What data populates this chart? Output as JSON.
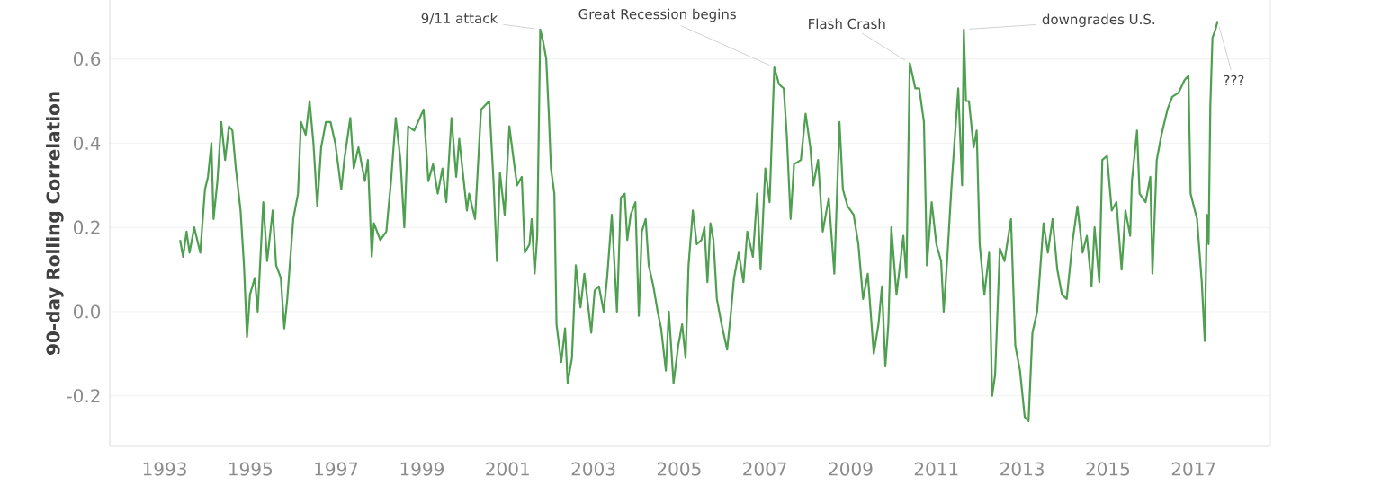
{
  "chart_data": {
    "type": "line",
    "ylabel": "90-day Rolling Correlation",
    "xlim": [
      1991.72,
      2018.79
    ],
    "ylim": [
      -0.32,
      0.74
    ],
    "xticks": [
      1993,
      1995,
      1997,
      1999,
      2001,
      2003,
      2005,
      2007,
      2009,
      2011,
      2013,
      2015,
      2017
    ],
    "yticks": [
      -0.2,
      {
        "value": 0,
        "label": "0.0"
      },
      0.2,
      0.4,
      0.6
    ],
    "grid": "y",
    "line_style": "solid",
    "annotations": [
      {
        "text": "9/11 attack",
        "x": 2001.76,
        "y": 0.67
      },
      {
        "text": "Great Recession begins",
        "x": 2007.22,
        "y": 0.58
      },
      {
        "text": "Flash Crash",
        "x": 2010.38,
        "y": 0.59
      },
      {
        "text": "downgrades U.S.",
        "x": 2011.64,
        "y": 0.67
      },
      {
        "text": "???",
        "x": 2017.56,
        "y": 0.69
      }
    ],
    "series": [
      {
        "color": "#4e9f50",
        "x": [
          1993.36,
          1993.43,
          1993.51,
          1993.58,
          1993.69,
          1993.83,
          1993.94,
          1994.01,
          1994.09,
          1994.14,
          1994.23,
          1994.32,
          1994.41,
          1994.5,
          1994.58,
          1994.66,
          1994.77,
          1994.85,
          1994.92,
          1994.99,
          1995.1,
          1995.17,
          1995.3,
          1995.39,
          1995.52,
          1995.6,
          1995.71,
          1995.79,
          1995.86,
          1996.0,
          1996.11,
          1996.18,
          1996.29,
          1996.38,
          1996.47,
          1996.56,
          1996.65,
          1996.76,
          1996.87,
          1996.98,
          1997.12,
          1997.19,
          1997.33,
          1997.41,
          1997.52,
          1997.67,
          1997.74,
          1997.83,
          1997.88,
          1998.03,
          1998.17,
          1998.28,
          1998.39,
          1998.5,
          1998.59,
          1998.68,
          1998.82,
          1999.04,
          1999.15,
          1999.26,
          1999.37,
          1999.48,
          1999.57,
          1999.69,
          1999.8,
          1999.87,
          2000.05,
          2000.1,
          2000.24,
          2000.38,
          2000.57,
          2000.67,
          2000.75,
          2000.82,
          2000.93,
          2001.04,
          2001.14,
          2001.22,
          2001.33,
          2001.4,
          2001.51,
          2001.56,
          2001.63,
          2001.69,
          2001.76,
          2001.83,
          2001.9,
          2001.96,
          2002.01,
          2002.09,
          2002.14,
          2002.25,
          2002.34,
          2002.4,
          2002.5,
          2002.59,
          2002.7,
          2002.79,
          2002.95,
          2003.03,
          2003.13,
          2003.24,
          2003.32,
          2003.43,
          2003.55,
          2003.64,
          2003.73,
          2003.79,
          2003.87,
          2003.98,
          2004.06,
          2004.13,
          2004.22,
          2004.29,
          2004.4,
          2004.5,
          2004.58,
          2004.69,
          2004.76,
          2004.87,
          2004.98,
          2005.07,
          2005.15,
          2005.22,
          2005.32,
          2005.41,
          2005.52,
          2005.59,
          2005.66,
          2005.73,
          2005.8,
          2005.88,
          2005.99,
          2006.12,
          2006.21,
          2006.28,
          2006.39,
          2006.5,
          2006.59,
          2006.72,
          2006.82,
          2006.9,
          2007.01,
          2007.11,
          2007.22,
          2007.33,
          2007.44,
          2007.51,
          2007.6,
          2007.68,
          2007.84,
          2007.95,
          2008.06,
          2008.13,
          2008.24,
          2008.35,
          2008.49,
          2008.62,
          2008.74,
          2008.82,
          2008.93,
          2009.07,
          2009.18,
          2009.29,
          2009.4,
          2009.54,
          2009.65,
          2009.73,
          2009.81,
          2009.88,
          2009.95,
          2010.07,
          2010.23,
          2010.3,
          2010.38,
          2010.51,
          2010.6,
          2010.71,
          2010.78,
          2010.89,
          2011.0,
          2011.11,
          2011.17,
          2011.25,
          2011.36,
          2011.51,
          2011.6,
          2011.64,
          2011.69,
          2011.76,
          2011.87,
          2011.94,
          2012.01,
          2012.12,
          2012.23,
          2012.3,
          2012.37,
          2012.48,
          2012.59,
          2012.74,
          2012.84,
          2012.95,
          2013.06,
          2013.15,
          2013.24,
          2013.35,
          2013.5,
          2013.6,
          2013.71,
          2013.82,
          2013.93,
          2014.04,
          2014.18,
          2014.29,
          2014.41,
          2014.51,
          2014.62,
          2014.69,
          2014.8,
          2014.87,
          2014.98,
          2015.09,
          2015.2,
          2015.32,
          2015.41,
          2015.52,
          2015.56,
          2015.68,
          2015.74,
          2015.88,
          2015.99,
          2016.04,
          2016.14,
          2016.25,
          2016.39,
          2016.5,
          2016.65,
          2016.79,
          2016.88,
          2016.93,
          2017.08,
          2017.19,
          2017.26,
          2017.31,
          2017.35,
          2017.39,
          2017.44,
          2017.51,
          2017.56
        ],
        "values": [
          0.17,
          0.13,
          0.19,
          0.14,
          0.2,
          0.14,
          0.29,
          0.32,
          0.4,
          0.22,
          0.31,
          0.45,
          0.36,
          0.44,
          0.43,
          0.34,
          0.24,
          0.11,
          -0.06,
          0.04,
          0.08,
          0.0,
          0.26,
          0.12,
          0.24,
          0.11,
          0.08,
          -0.04,
          0.03,
          0.22,
          0.28,
          0.45,
          0.42,
          0.5,
          0.4,
          0.25,
          0.39,
          0.45,
          0.45,
          0.4,
          0.29,
          0.36,
          0.46,
          0.34,
          0.39,
          0.31,
          0.36,
          0.13,
          0.21,
          0.17,
          0.19,
          0.31,
          0.46,
          0.36,
          0.2,
          0.44,
          0.43,
          0.48,
          0.31,
          0.35,
          0.28,
          0.34,
          0.26,
          0.46,
          0.32,
          0.41,
          0.24,
          0.28,
          0.22,
          0.48,
          0.5,
          0.31,
          0.12,
          0.33,
          0.23,
          0.44,
          0.36,
          0.3,
          0.32,
          0.14,
          0.16,
          0.22,
          0.09,
          0.18,
          0.67,
          0.64,
          0.6,
          0.47,
          0.34,
          0.28,
          -0.03,
          -0.12,
          -0.04,
          -0.17,
          -0.11,
          0.11,
          0.01,
          0.09,
          -0.05,
          0.05,
          0.06,
          0.0,
          0.08,
          0.23,
          0.0,
          0.27,
          0.28,
          0.17,
          0.23,
          0.26,
          -0.01,
          0.19,
          0.22,
          0.11,
          0.06,
          0.0,
          -0.04,
          -0.14,
          0.0,
          -0.17,
          -0.08,
          -0.03,
          -0.11,
          0.11,
          0.24,
          0.16,
          0.17,
          0.2,
          0.07,
          0.21,
          0.17,
          0.03,
          -0.03,
          -0.09,
          0.0,
          0.08,
          0.14,
          0.07,
          0.19,
          0.13,
          0.28,
          0.1,
          0.34,
          0.26,
          0.58,
          0.54,
          0.53,
          0.42,
          0.22,
          0.35,
          0.36,
          0.47,
          0.39,
          0.3,
          0.36,
          0.19,
          0.27,
          0.09,
          0.45,
          0.29,
          0.25,
          0.23,
          0.16,
          0.03,
          0.09,
          -0.1,
          -0.03,
          0.06,
          -0.13,
          -0.03,
          0.2,
          0.04,
          0.18,
          0.08,
          0.59,
          0.53,
          0.53,
          0.45,
          0.11,
          0.26,
          0.16,
          0.12,
          0.0,
          0.12,
          0.31,
          0.53,
          0.3,
          0.67,
          0.5,
          0.5,
          0.39,
          0.43,
          0.16,
          0.04,
          0.14,
          -0.2,
          -0.15,
          0.15,
          0.12,
          0.22,
          -0.08,
          -0.14,
          -0.25,
          -0.26,
          -0.05,
          0.0,
          0.21,
          0.14,
          0.22,
          0.1,
          0.04,
          0.03,
          0.17,
          0.25,
          0.14,
          0.18,
          0.06,
          0.2,
          0.07,
          0.36,
          0.37,
          0.24,
          0.26,
          0.1,
          0.24,
          0.18,
          0.31,
          0.43,
          0.28,
          0.26,
          0.32,
          0.09,
          0.36,
          0.42,
          0.48,
          0.51,
          0.52,
          0.55,
          0.56,
          0.28,
          0.22,
          0.07,
          -0.07,
          0.23,
          0.16,
          0.49,
          0.65,
          0.67,
          0.69
        ]
      }
    ]
  }
}
